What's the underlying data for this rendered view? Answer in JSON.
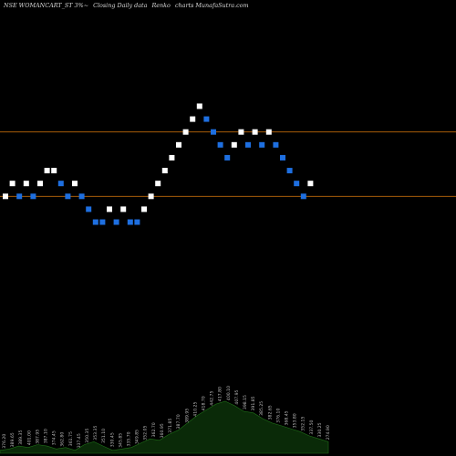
{
  "header": {
    "symbol": "NSE WOMANCART_ST 3%~",
    "subtitle": "Closing Daily data",
    "type_label": "Renko",
    "site": "charts MunafaSutra.com"
  },
  "colors": {
    "background": "#000000",
    "up_brick": "#ffffff",
    "down_brick": "#1e6fe0",
    "line": "#c06a0a",
    "volume_fill": "#0a2a08",
    "volume_stroke": "#1f6f18"
  },
  "chart_data": {
    "type": "renko",
    "brick_size_pct": 3,
    "reference_lines": [
      410,
      360
    ],
    "bricks": [
      {
        "dir": "up",
        "y": 360
      },
      {
        "dir": "up",
        "y": 370
      },
      {
        "dir": "down",
        "y": 360
      },
      {
        "dir": "up",
        "y": 370
      },
      {
        "dir": "down",
        "y": 360
      },
      {
        "dir": "up",
        "y": 370
      },
      {
        "dir": "up",
        "y": 380
      },
      {
        "dir": "up",
        "y": 380
      },
      {
        "dir": "down",
        "y": 370
      },
      {
        "dir": "down",
        "y": 360
      },
      {
        "dir": "up",
        "y": 370
      },
      {
        "dir": "down",
        "y": 360
      },
      {
        "dir": "down",
        "y": 350
      },
      {
        "dir": "down",
        "y": 340
      },
      {
        "dir": "down",
        "y": 340
      },
      {
        "dir": "up",
        "y": 350
      },
      {
        "dir": "down",
        "y": 340
      },
      {
        "dir": "up",
        "y": 350
      },
      {
        "dir": "down",
        "y": 340
      },
      {
        "dir": "down",
        "y": 340
      },
      {
        "dir": "up",
        "y": 350
      },
      {
        "dir": "up",
        "y": 360
      },
      {
        "dir": "up",
        "y": 370
      },
      {
        "dir": "up",
        "y": 380
      },
      {
        "dir": "up",
        "y": 390
      },
      {
        "dir": "up",
        "y": 400
      },
      {
        "dir": "up",
        "y": 410
      },
      {
        "dir": "up",
        "y": 420
      },
      {
        "dir": "up",
        "y": 430
      },
      {
        "dir": "down",
        "y": 420
      },
      {
        "dir": "down",
        "y": 410
      },
      {
        "dir": "down",
        "y": 400
      },
      {
        "dir": "down",
        "y": 390
      },
      {
        "dir": "up",
        "y": 400
      },
      {
        "dir": "up",
        "y": 410
      },
      {
        "dir": "down",
        "y": 400
      },
      {
        "dir": "up",
        "y": 410
      },
      {
        "dir": "down",
        "y": 400
      },
      {
        "dir": "up",
        "y": 410
      },
      {
        "dir": "down",
        "y": 400
      },
      {
        "dir": "down",
        "y": 390
      },
      {
        "dir": "down",
        "y": 380
      },
      {
        "dir": "down",
        "y": 370
      },
      {
        "dir": "down",
        "y": 360
      },
      {
        "dir": "up",
        "y": 370
      }
    ],
    "y_range": [
      300,
      470
    ],
    "volume_profile": [
      2,
      3,
      5,
      4,
      6,
      5,
      3,
      4,
      2,
      6,
      8,
      5,
      2,
      3,
      4,
      7,
      10,
      9,
      13,
      16,
      21,
      26,
      30,
      34,
      36,
      33,
      29,
      28,
      24,
      21,
      19,
      17,
      15,
      12,
      10,
      8
    ],
    "volume_labels": [
      "376.20",
      "389.65",
      "389.35",
      "401.00",
      "387.95",
      "387.10",
      "374.45",
      "362.80",
      "361.75",
      "337.45",
      "350.35",
      "353.35",
      "351.10",
      "330.45",
      "345.85",
      "335.70",
      "349.85",
      "352.05",
      "362.70",
      "360.95",
      "371.85",
      "387.70",
      "389.95",
      "410.25",
      "418.70",
      "442.75",
      "417.80",
      "400.10",
      "407.95",
      "398.15",
      "391.85",
      "385.25",
      "382.65",
      "376.10",
      "368.45",
      "353.80",
      "352.15",
      "337.50",
      "330.25",
      "274.90"
    ]
  }
}
